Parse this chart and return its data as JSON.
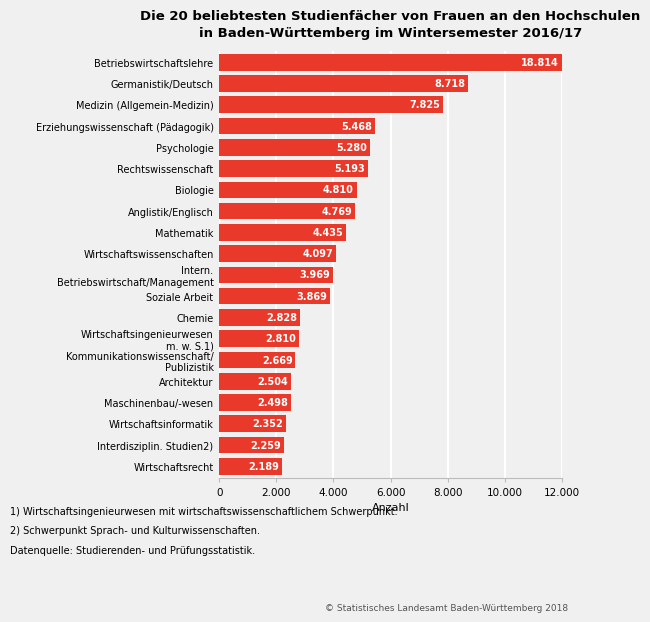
{
  "title": "Die 20 beliebtesten Studienfächer von Frauen an den Hochschulen\nin Baden-Württemberg im Wintersemester 2016/17",
  "categories": [
    "Wirtschaftsrecht",
    "Interdisziplin. Studien2)",
    "Wirtschaftsinformatik",
    "Maschinenbau/-wesen",
    "Architektur",
    "Kommunikationswissenschaft/\nPublizistik",
    "Wirtschaftsingenieurwesen\nm. w. S.1)",
    "Chemie",
    "Soziale Arbeit",
    "Intern.\nBetriebswirtschaft/Management",
    "Wirtschaftswissenschaften",
    "Mathematik",
    "Anglistik/Englisch",
    "Biologie",
    "Rechtswissenschaft",
    "Psychologie",
    "Erziehungswissenschaft (Pädagogik)",
    "Medizin (Allgemein-Medizin)",
    "Germanistik/Deutsch",
    "Betriebswirtschaftslehre"
  ],
  "values": [
    2189,
    2259,
    2352,
    2498,
    2504,
    2669,
    2810,
    2828,
    3869,
    3969,
    4097,
    4435,
    4769,
    4810,
    5193,
    5280,
    5468,
    7825,
    8718,
    18814
  ],
  "bar_color": "#e8392a",
  "xlabel": "Anzahl",
  "xlim": [
    0,
    12000
  ],
  "xticks": [
    0,
    2000,
    4000,
    6000,
    8000,
    10000,
    12000
  ],
  "xtick_labels": [
    "0",
    "2.000",
    "4.000",
    "6.000",
    "8.000",
    "10.000",
    "12.000"
  ],
  "footnote1": "1) Wirtschaftsingenieurwesen mit wirtschaftswissenschaftlichem Schwerpunkt.",
  "footnote2": "2) Schwerpunkt Sprach- und Kulturwissenschaften.",
  "footnote3": "Datenquelle: Studierenden- und Prüfungsstatistik.",
  "copyright": "© Statistisches Landesamt Baden-Württemberg 2018",
  "bg_color": "#f0f0f0",
  "grid_color": "#ffffff",
  "value_labels": [
    "2.189",
    "2.259",
    "2.352",
    "2.498",
    "2.504",
    "2.669",
    "2.810",
    "2.828",
    "3.869",
    "3.969",
    "4.097",
    "4.435",
    "4.769",
    "4.810",
    "5.193",
    "5.280",
    "5.468",
    "7.825",
    "8.718",
    "18.814"
  ]
}
